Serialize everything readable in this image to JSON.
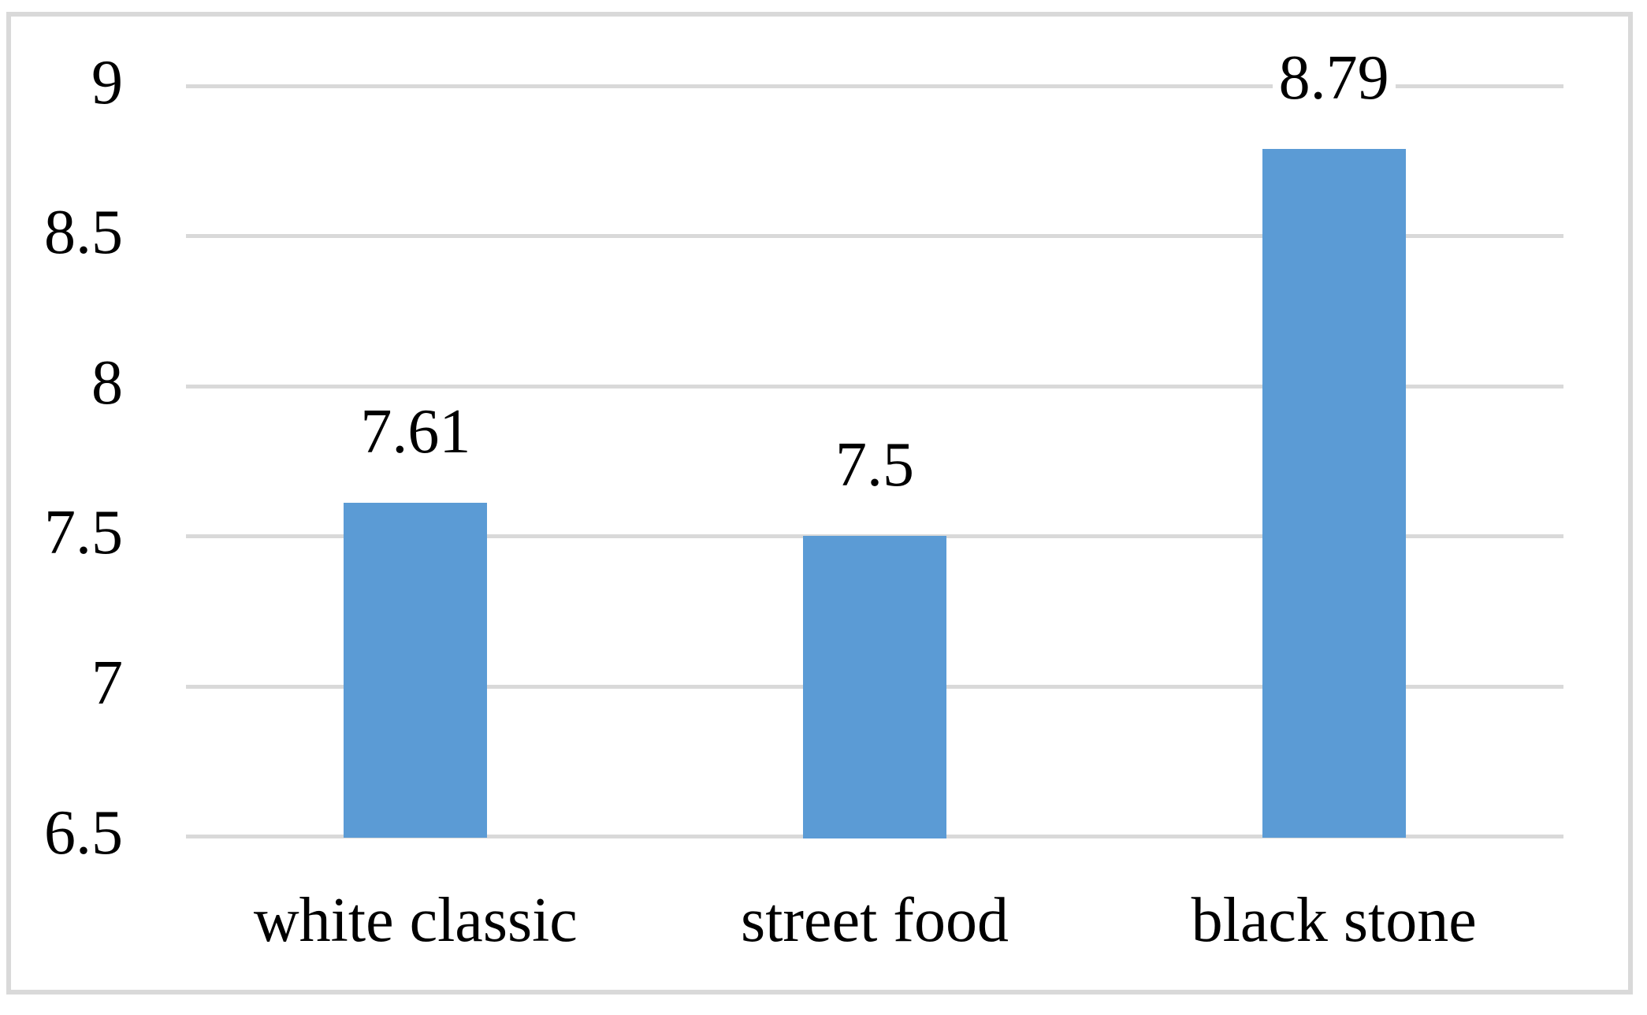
{
  "chart_data": {
    "type": "bar",
    "title": "",
    "xlabel": "",
    "ylabel": "",
    "categories": [
      "white classic",
      "street food",
      "black stone"
    ],
    "values": [
      7.61,
      7.5,
      8.79
    ],
    "value_labels": [
      "7.61",
      "7.5",
      "8.79"
    ],
    "y_ticks": [
      6.5,
      7,
      7.5,
      8,
      8.5,
      9
    ],
    "y_tick_labels": [
      "6.5",
      "7",
      "7.5",
      "8",
      "8.5",
      "9"
    ],
    "ylim": [
      6.5,
      9
    ],
    "grid": true,
    "legend": false,
    "colors": {
      "bar": "#5B9BD5",
      "gridline": "#D9D9D9",
      "frame_border": "#D9D9D9",
      "text": "#000000",
      "background": "#FFFFFF"
    }
  }
}
